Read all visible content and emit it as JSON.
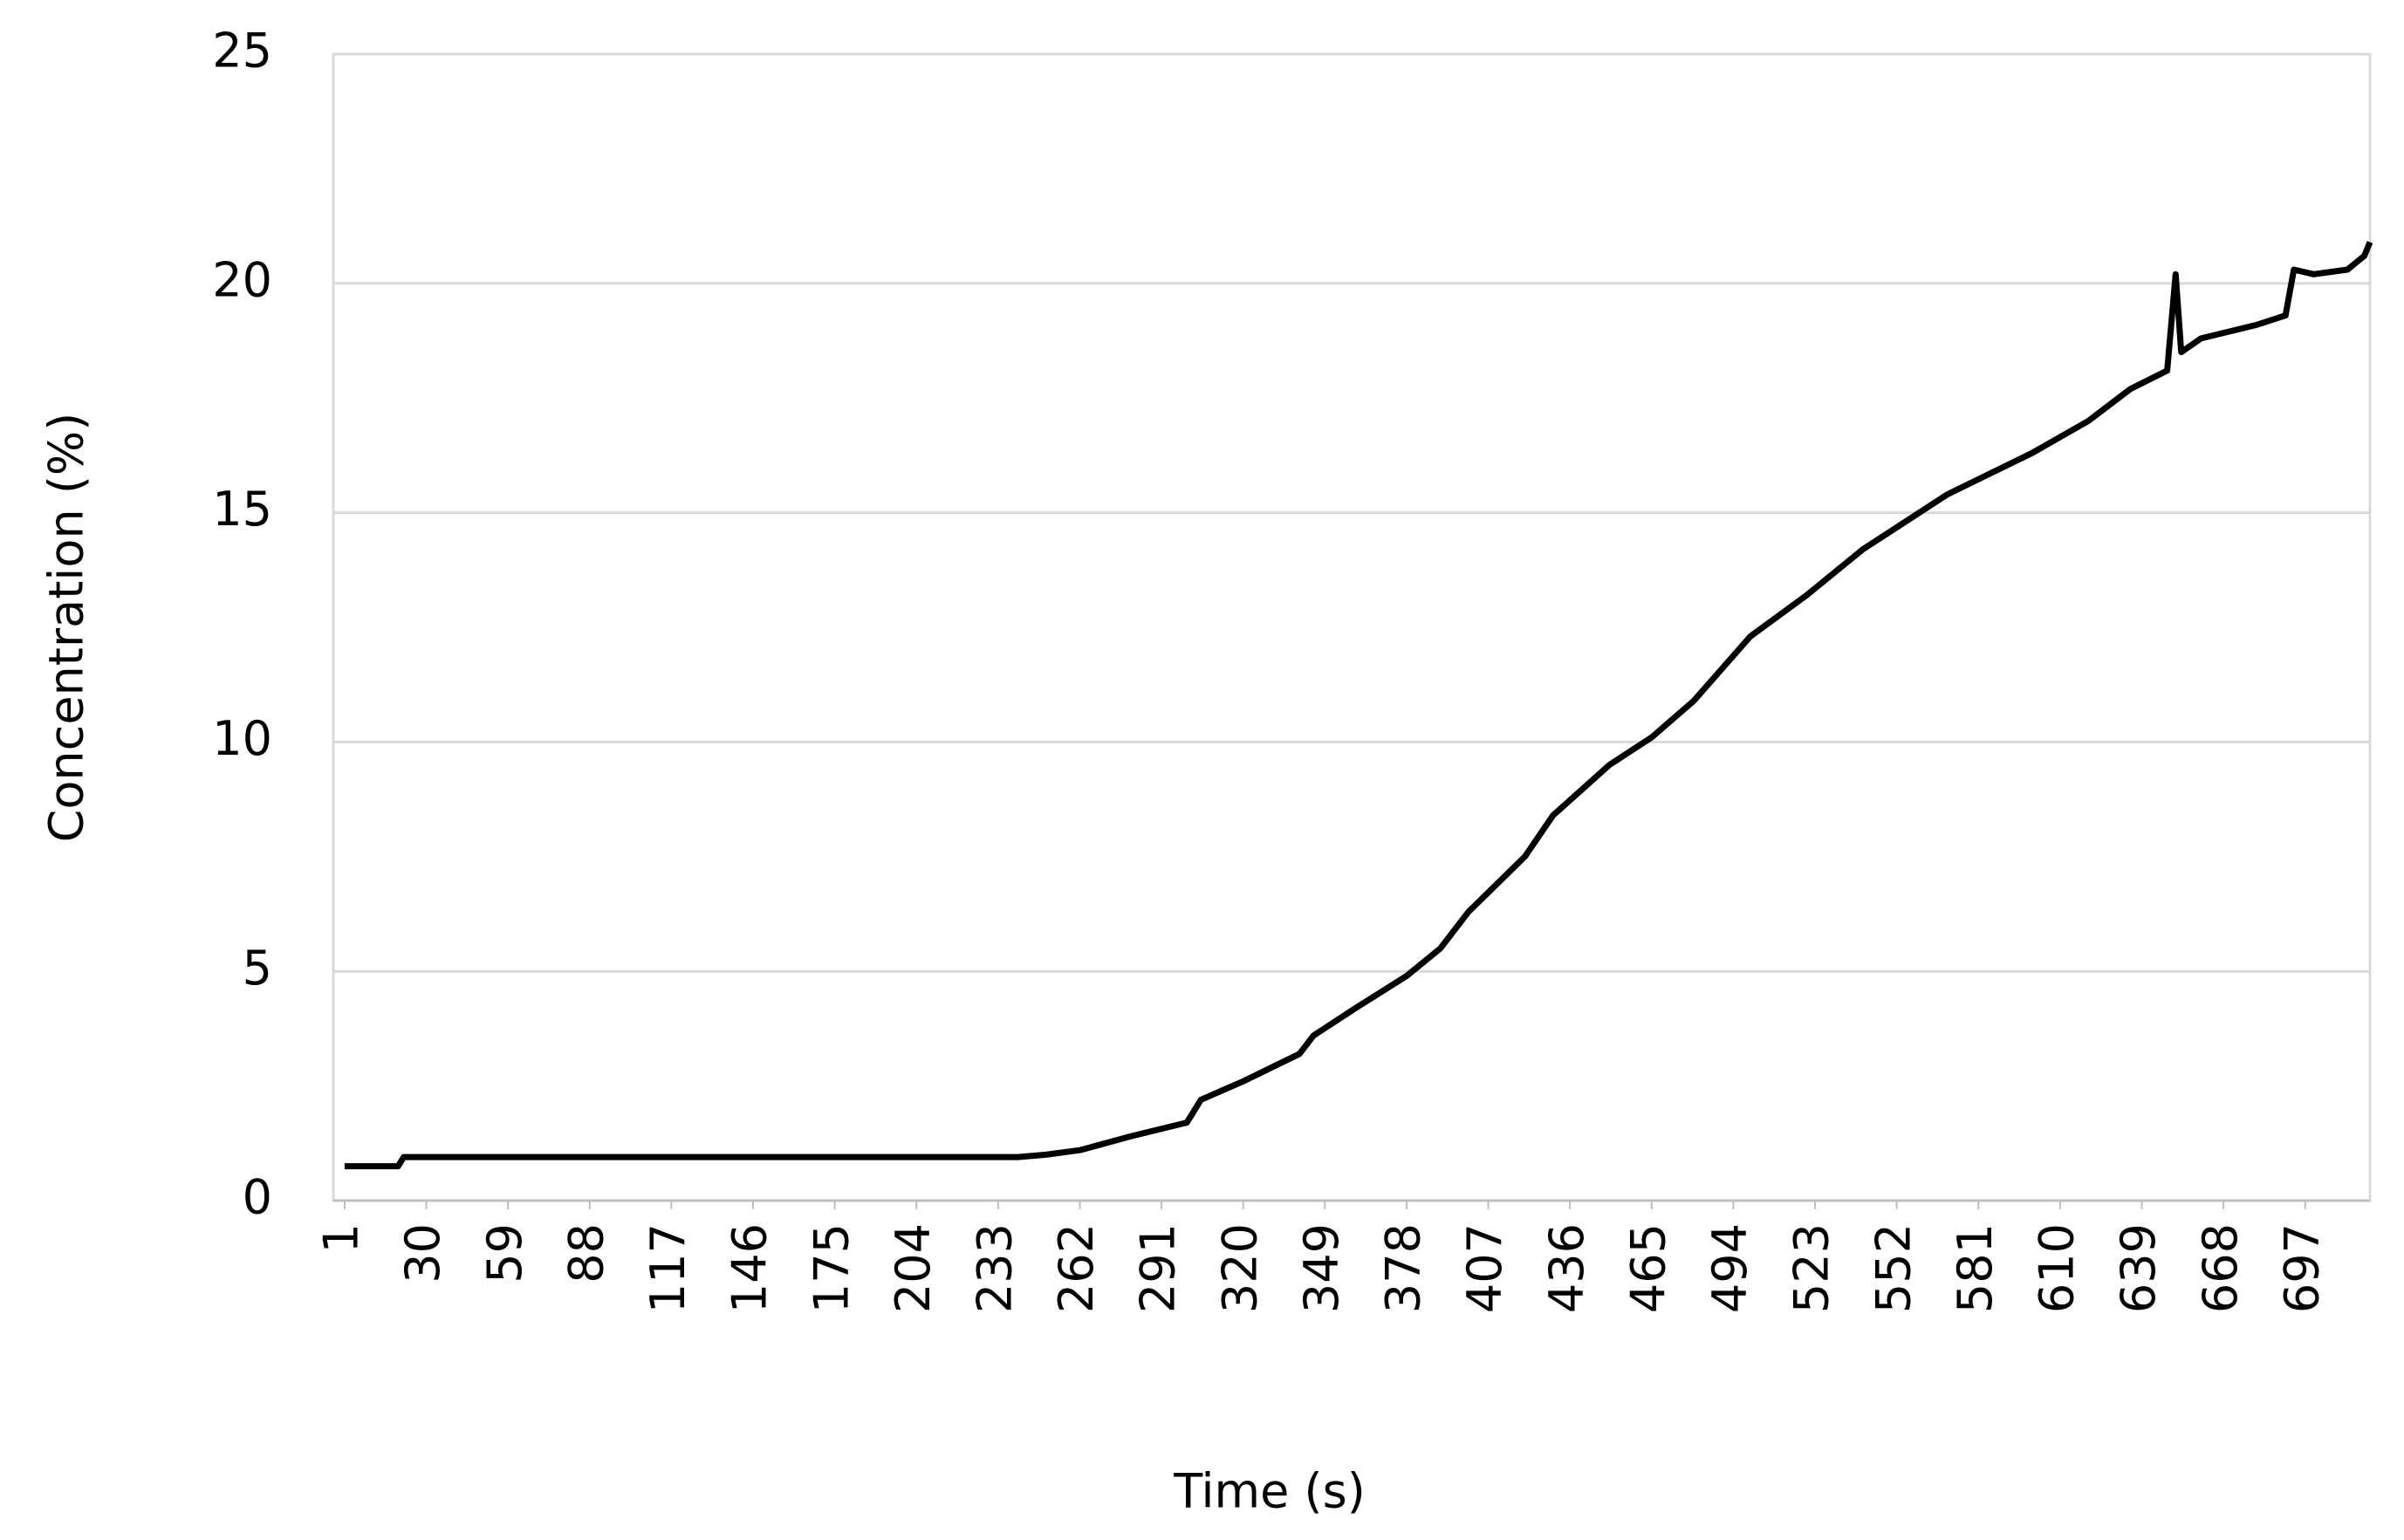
{
  "chart_data": {
    "type": "line",
    "xlabel": "Time  (s)",
    "ylabel": "Concentration (%)",
    "x": [
      1,
      20,
      22,
      100,
      240,
      250,
      262,
      280,
      300,
      305,
      320,
      340,
      345,
      360,
      378,
      390,
      400,
      420,
      430,
      450,
      465,
      480,
      500,
      520,
      540,
      570,
      600,
      620,
      635,
      648,
      651,
      653,
      660,
      680,
      690,
      693,
      700,
      712,
      718,
      720
    ],
    "series": [
      {
        "name": "Concentration",
        "color": "#000000",
        "values": [
          0.75,
          0.75,
          0.95,
          0.95,
          0.95,
          1.0,
          1.1,
          1.4,
          1.7,
          2.2,
          2.6,
          3.2,
          3.6,
          4.2,
          4.9,
          5.5,
          6.3,
          7.5,
          8.4,
          9.5,
          10.1,
          10.9,
          12.3,
          13.2,
          14.2,
          15.4,
          16.3,
          17.0,
          17.7,
          18.1,
          20.2,
          18.5,
          18.8,
          19.1,
          19.3,
          20.3,
          20.2,
          20.3,
          20.6,
          20.9
        ]
      }
    ],
    "xlim": [
      -3,
      720
    ],
    "xticks": [
      1,
      30,
      59,
      88,
      117,
      146,
      175,
      204,
      233,
      262,
      291,
      320,
      349,
      378,
      407,
      436,
      465,
      494,
      523,
      552,
      581,
      610,
      639,
      668,
      697
    ],
    "ylim": [
      0,
      25
    ],
    "yticks": [
      0,
      5,
      10,
      15,
      20,
      25
    ],
    "grid": true
  }
}
